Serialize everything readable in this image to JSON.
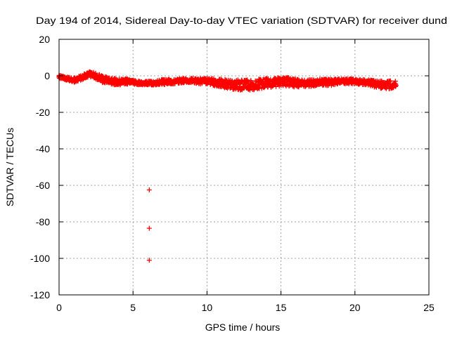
{
  "chart_data": {
    "type": "scatter",
    "title": "Day 194 of 2014, Sidereal Day-to-day VTEC variation (SDTVAR) for receiver dund",
    "xlabel": "GPS time / hours",
    "ylabel": "SDTVAR / TECUs",
    "xlim": [
      0,
      25
    ],
    "ylim": [
      -120,
      20
    ],
    "xticks": [
      0,
      5,
      10,
      15,
      20,
      25
    ],
    "yticks": [
      20,
      0,
      -20,
      -40,
      -60,
      -80,
      -100,
      -120
    ],
    "grid": true,
    "marker": "+",
    "color": "#ff0000",
    "series": [
      {
        "name": "SDTVAR",
        "band": {
          "x": [
            0.0,
            0.5,
            1.0,
            1.5,
            1.9,
            2.2,
            2.6,
            3.0,
            3.5,
            4.0,
            4.5,
            5.0,
            5.5,
            6.0,
            6.5,
            7.0,
            7.5,
            8.0,
            8.5,
            9.0,
            9.5,
            10.0,
            10.5,
            11.0,
            11.5,
            12.0,
            12.5,
            13.0,
            13.5,
            14.0,
            14.5,
            15.0,
            15.5,
            16.0,
            16.5,
            17.0,
            17.5,
            18.0,
            18.5,
            19.0,
            19.5,
            20.0,
            20.5,
            21.0,
            21.5,
            22.0,
            22.5,
            22.8
          ],
          "center": [
            -0.5,
            -1.5,
            -2.5,
            -1.0,
            0.5,
            1.0,
            -0.5,
            -2.0,
            -3.0,
            -3.5,
            -3.0,
            -3.5,
            -4.0,
            -4.0,
            -4.0,
            -3.5,
            -3.0,
            -3.0,
            -2.5,
            -2.5,
            -3.0,
            -3.0,
            -3.5,
            -4.0,
            -4.5,
            -5.0,
            -5.0,
            -5.0,
            -4.5,
            -4.0,
            -4.0,
            -3.5,
            -3.5,
            -4.0,
            -4.0,
            -4.0,
            -3.5,
            -3.5,
            -3.5,
            -3.0,
            -3.0,
            -3.0,
            -3.5,
            -4.0,
            -4.5,
            -5.0,
            -5.0,
            -4.5
          ],
          "spread": [
            0.8,
            1.0,
            1.2,
            1.3,
            1.5,
            1.5,
            1.8,
            2.0,
            2.0,
            1.8,
            1.5,
            1.2,
            1.0,
            1.0,
            1.3,
            1.5,
            1.5,
            1.3,
            1.2,
            1.3,
            1.5,
            1.8,
            2.0,
            2.3,
            2.5,
            2.8,
            3.0,
            3.0,
            2.8,
            2.5,
            2.5,
            2.8,
            2.5,
            2.3,
            2.0,
            2.0,
            1.8,
            1.8,
            1.8,
            1.5,
            1.5,
            1.3,
            1.5,
            1.8,
            2.0,
            2.3,
            2.3,
            1.5
          ]
        },
        "outliers": [
          {
            "x": 6.1,
            "y": -62.5
          },
          {
            "x": 6.1,
            "y": -83.5
          },
          {
            "x": 6.1,
            "y": -101.0
          }
        ]
      }
    ]
  }
}
